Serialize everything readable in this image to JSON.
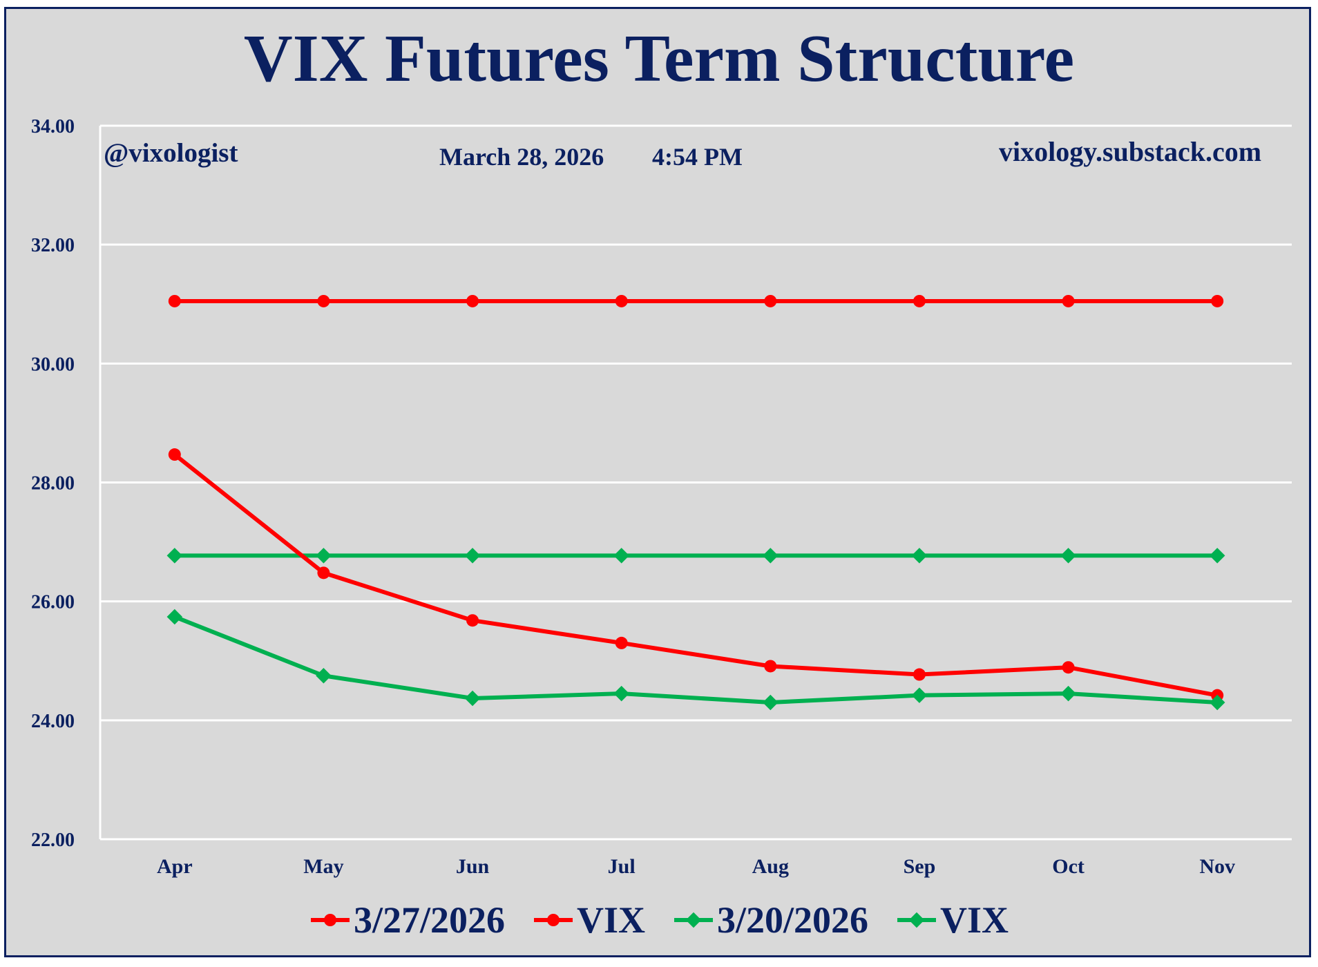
{
  "chart_data": {
    "type": "line",
    "title": "VIX Futures Term Structure",
    "annotations": {
      "handle": "@vixologist",
      "date": "March 28, 2026",
      "time": "4:54 PM",
      "site": "vixology.substack.com"
    },
    "categories": [
      "Apr",
      "May",
      "Jun",
      "Jul",
      "Aug",
      "Sep",
      "Oct",
      "Nov"
    ],
    "ylim": [
      22,
      34
    ],
    "yticks": [
      "22.00",
      "24.00",
      "26.00",
      "28.00",
      "30.00",
      "32.00",
      "34.00"
    ],
    "grid": true,
    "legend_position": "bottom",
    "series": [
      {
        "name": "3/27/2026",
        "color": "#ff0000",
        "marker": "circle",
        "values": [
          28.47,
          26.48,
          25.68,
          25.3,
          24.91,
          24.77,
          24.89,
          24.42
        ]
      },
      {
        "name": "VIX",
        "color": "#ff0000",
        "marker": "circle",
        "values": [
          31.05,
          31.05,
          31.05,
          31.05,
          31.05,
          31.05,
          31.05,
          31.05
        ]
      },
      {
        "name": "3/20/2026",
        "color": "#00b050",
        "marker": "diamond",
        "values": [
          25.74,
          24.75,
          24.37,
          24.45,
          24.3,
          24.42,
          24.45,
          24.3
        ]
      },
      {
        "name": "VIX",
        "color": "#00b050",
        "marker": "diamond",
        "values": [
          26.77,
          26.77,
          26.77,
          26.77,
          26.77,
          26.77,
          26.77,
          26.77
        ]
      }
    ]
  }
}
